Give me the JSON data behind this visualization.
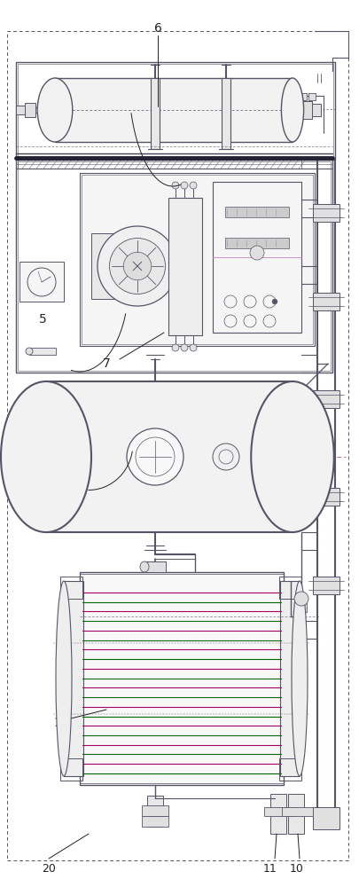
{
  "bg_color": "#ffffff",
  "lc": "#555566",
  "lc_dark": "#333344",
  "pink": "#cc88bb",
  "green": "#88aa88",
  "blue_tint": "#e8eef4",
  "gray_light": "#e8e8e8",
  "gray_med": "#cccccc",
  "label_fs": 8,
  "label_color": "#222222"
}
